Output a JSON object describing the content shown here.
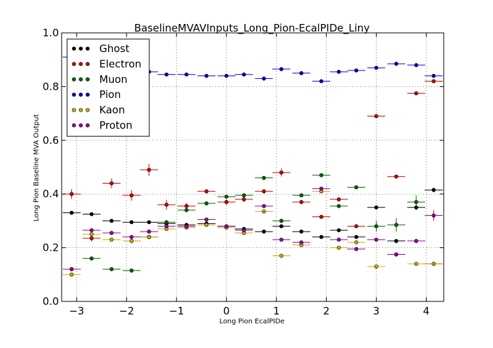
{
  "chart_data": {
    "type": "scatter",
    "title": "BaselineMVAVInputs_Long_Pion-EcalPIDe_Liny",
    "xlabel": "Long Pion EcalPIDe",
    "ylabel": "Long Pion Baseline MVA Output",
    "xlim": [
      -3.3,
      4.35
    ],
    "ylim": [
      0.0,
      1.0
    ],
    "xticks": [
      -3,
      -2,
      -1,
      0,
      1,
      2,
      3,
      4
    ],
    "yticks": [
      0.0,
      0.2,
      0.4,
      0.6,
      0.8,
      1.0
    ],
    "grid": true,
    "legend_position": "top-left",
    "bin_halfwidth": 0.18,
    "series": [
      {
        "name": "Ghost",
        "color": "#000000",
        "x": [
          -3.1,
          -2.7,
          -2.3,
          -1.9,
          -1.55,
          -1.2,
          -0.8,
          -0.4,
          0.0,
          0.35,
          0.75,
          1.1,
          1.5,
          1.9,
          2.25,
          2.6,
          3.0,
          3.4,
          3.8,
          4.15
        ],
        "y": [
          0.33,
          0.325,
          0.3,
          0.295,
          0.295,
          0.29,
          0.285,
          0.29,
          0.28,
          0.27,
          0.26,
          0.28,
          0.26,
          0.24,
          0.265,
          0.24,
          0.35,
          0.225,
          0.35,
          0.415
        ],
        "err": [
          0.005,
          0.005,
          0.004,
          0.004,
          0.004,
          0.004,
          0.004,
          0.004,
          0.004,
          0.005,
          0.005,
          0.006,
          0.006,
          0.006,
          0.007,
          0.007,
          0.008,
          0.006,
          0.01,
          0.008
        ]
      },
      {
        "name": "Electron",
        "color": "#cc0000",
        "x": [
          -3.1,
          -2.7,
          -2.3,
          -1.9,
          -1.55,
          -1.2,
          -0.8,
          -0.4,
          0.0,
          0.35,
          0.75,
          1.1,
          1.5,
          1.9,
          2.25,
          2.6,
          3.0,
          3.4,
          3.8,
          4.15
        ],
        "y": [
          0.4,
          0.235,
          0.44,
          0.395,
          0.49,
          0.36,
          0.355,
          0.41,
          0.37,
          0.38,
          0.41,
          0.48,
          0.37,
          0.315,
          0.38,
          0.28,
          0.69,
          0.465,
          0.775,
          0.82
        ],
        "err": [
          0.018,
          0.012,
          0.018,
          0.02,
          0.022,
          0.018,
          0.012,
          0.008,
          0.01,
          0.008,
          0.008,
          0.015,
          0.008,
          0.006,
          0.006,
          0.005,
          0.006,
          0.005,
          0.006,
          0.007
        ]
      },
      {
        "name": "Muon",
        "color": "#006600",
        "x": [
          -3.1,
          -2.7,
          -2.3,
          -1.9,
          -1.55,
          -1.2,
          -0.8,
          -0.4,
          0.0,
          0.35,
          0.75,
          1.1,
          1.5,
          1.9,
          2.25,
          2.6,
          3.0,
          3.4,
          3.8,
          4.15
        ],
        "y": [
          0.12,
          0.16,
          0.12,
          0.115,
          0.24,
          0.295,
          0.34,
          0.365,
          0.39,
          0.395,
          0.46,
          0.3,
          0.395,
          0.47,
          0.355,
          0.425,
          0.28,
          0.285,
          0.37,
          0.14
        ],
        "err": [
          0.005,
          0.005,
          0.004,
          0.004,
          0.006,
          0.006,
          0.006,
          0.005,
          0.005,
          0.006,
          0.006,
          0.008,
          0.006,
          0.006,
          0.006,
          0.006,
          0.02,
          0.025,
          0.025,
          0.005
        ]
      },
      {
        "name": "Pion",
        "color": "#0000cc",
        "x": [
          -3.1,
          -2.7,
          -2.3,
          -1.9,
          -1.55,
          -1.2,
          -0.8,
          -0.4,
          0.0,
          0.35,
          0.75,
          1.1,
          1.5,
          1.9,
          2.25,
          2.6,
          3.0,
          3.4,
          3.8,
          4.15
        ],
        "y": [
          0.91,
          0.895,
          0.88,
          0.865,
          0.855,
          0.845,
          0.845,
          0.84,
          0.84,
          0.845,
          0.83,
          0.865,
          0.85,
          0.82,
          0.855,
          0.86,
          0.87,
          0.885,
          0.88,
          0.84
        ],
        "err": [
          0.003,
          0.003,
          0.003,
          0.003,
          0.003,
          0.003,
          0.003,
          0.003,
          0.003,
          0.003,
          0.003,
          0.003,
          0.003,
          0.003,
          0.003,
          0.003,
          0.003,
          0.003,
          0.003,
          0.003
        ]
      },
      {
        "name": "Kaon",
        "color": "#ccaa00",
        "x": [
          -3.1,
          -2.7,
          -2.3,
          -1.9,
          -1.55,
          -1.2,
          -0.8,
          -0.4,
          0.0,
          0.35,
          0.75,
          1.1,
          1.5,
          1.9,
          2.25,
          2.6,
          3.0,
          3.4,
          3.8,
          4.15
        ],
        "y": [
          0.1,
          0.25,
          0.23,
          0.225,
          0.24,
          0.27,
          0.275,
          0.285,
          0.275,
          0.255,
          0.335,
          0.17,
          0.21,
          0.41,
          0.2,
          0.22,
          0.13,
          0.175,
          0.14,
          0.14
        ],
        "err": [
          0.004,
          0.005,
          0.004,
          0.004,
          0.004,
          0.004,
          0.004,
          0.004,
          0.004,
          0.005,
          0.006,
          0.006,
          0.006,
          0.006,
          0.005,
          0.005,
          0.005,
          0.004,
          0.004,
          0.004
        ]
      },
      {
        "name": "Proton",
        "color": "#990099",
        "x": [
          -3.1,
          -2.7,
          -2.3,
          -1.9,
          -1.55,
          -1.2,
          -0.8,
          -0.4,
          0.0,
          0.35,
          0.75,
          1.1,
          1.5,
          1.9,
          2.25,
          2.6,
          3.0,
          3.4,
          3.8,
          4.15
        ],
        "y": [
          0.12,
          0.265,
          0.255,
          0.24,
          0.26,
          0.28,
          0.28,
          0.305,
          0.28,
          0.265,
          0.355,
          0.23,
          0.22,
          0.42,
          0.23,
          0.195,
          0.23,
          0.175,
          0.225,
          0.32
        ],
        "err": [
          0.004,
          0.005,
          0.005,
          0.004,
          0.004,
          0.004,
          0.004,
          0.004,
          0.004,
          0.005,
          0.006,
          0.006,
          0.006,
          0.006,
          0.005,
          0.005,
          0.005,
          0.004,
          0.005,
          0.02
        ]
      }
    ]
  }
}
